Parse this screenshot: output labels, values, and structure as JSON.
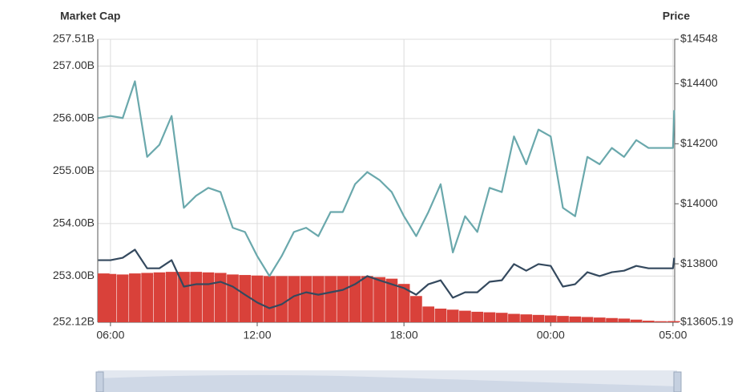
{
  "chart_data": {
    "type": "line",
    "y_label": "Market Cap",
    "y2_label": "Price",
    "x": [
      5.5,
      6,
      6.5,
      7,
      7.5,
      8,
      8.5,
      9,
      9.5,
      10,
      10.5,
      11,
      11.5,
      12,
      12.5,
      13,
      13.5,
      14,
      14.5,
      15,
      15.5,
      16,
      16.5,
      17,
      17.5,
      18,
      18.5,
      19,
      19.5,
      20,
      20.5,
      21,
      21.5,
      22,
      22.5,
      23,
      23.5,
      24,
      24.5,
      25,
      25.5,
      26,
      26.5,
      27,
      27.5,
      28,
      28.5,
      29,
      29.05
    ],
    "xlim": [
      5.48,
      29.07
    ],
    "xticks": [
      {
        "value": 6,
        "label": "06:00"
      },
      {
        "value": 12,
        "label": "12:00"
      },
      {
        "value": 18,
        "label": "18:00"
      },
      {
        "value": 24,
        "label": "00:00"
      },
      {
        "value": 29,
        "label": "05:00"
      }
    ],
    "ylim": [
      252.12,
      257.51
    ],
    "yticks": [
      {
        "value": 252.12,
        "label": "252.12B"
      },
      {
        "value": 253,
        "label": "253.00B"
      },
      {
        "value": 254,
        "label": "254.00B"
      },
      {
        "value": 255,
        "label": "255.00B"
      },
      {
        "value": 256,
        "label": "256.00B"
      },
      {
        "value": 257,
        "label": "257.00B"
      },
      {
        "value": 257.51,
        "label": "257.51B"
      }
    ],
    "y2lim": [
      13605.19,
      14548
    ],
    "y2ticks": [
      {
        "value": 13605.19,
        "label": "$13605.19"
      },
      {
        "value": 13800,
        "label": "$13800"
      },
      {
        "value": 14000,
        "label": "$14000"
      },
      {
        "value": 14200,
        "label": "$14200"
      },
      {
        "value": 14400,
        "label": "$14400"
      },
      {
        "value": 14548,
        "label": "$14548"
      }
    ],
    "grid": true,
    "series": [
      {
        "type": "bar",
        "color": "#d9413a",
        "values": [
          253.05,
          253.04,
          253.03,
          253.05,
          253.06,
          253.07,
          253.08,
          253.08,
          253.08,
          253.07,
          253.06,
          253.03,
          253.02,
          253.01,
          253.0,
          253.0,
          253.0,
          253.0,
          253.0,
          253.0,
          253.0,
          253.0,
          253.0,
          252.98,
          252.95,
          252.85,
          252.62,
          252.42,
          252.38,
          252.36,
          252.34,
          252.32,
          252.31,
          252.3,
          252.28,
          252.27,
          252.26,
          252.25,
          252.24,
          252.23,
          252.22,
          252.21,
          252.2,
          252.19,
          252.17,
          252.15,
          252.14,
          252.14,
          252.14
        ]
      },
      {
        "type": "line",
        "color": "#6aa8ac",
        "values": [
          256.01,
          256.05,
          256.01,
          256.71,
          255.27,
          255.5,
          256.05,
          254.3,
          254.53,
          254.68,
          254.6,
          253.92,
          253.84,
          253.38,
          253.0,
          253.38,
          253.84,
          253.92,
          253.76,
          254.22,
          254.22,
          254.75,
          254.98,
          254.83,
          254.6,
          254.14,
          253.76,
          254.22,
          254.75,
          253.45,
          254.14,
          253.84,
          254.68,
          254.6,
          255.66,
          255.13,
          255.79,
          255.66,
          254.3,
          254.14,
          255.27,
          255.13,
          255.44,
          255.27,
          255.59,
          255.44,
          255.44,
          255.44,
          256.16
        ]
      },
      {
        "type": "line",
        "axis": "y2",
        "color": "#34495e",
        "values": [
          13812,
          13812,
          13820,
          13847,
          13785,
          13785,
          13812,
          13724,
          13732,
          13732,
          13740,
          13724,
          13697,
          13671,
          13652,
          13665,
          13692,
          13705,
          13697,
          13705,
          13713,
          13732,
          13759,
          13745,
          13732,
          13719,
          13697,
          13732,
          13745,
          13687,
          13705,
          13705,
          13740,
          13745,
          13799,
          13777,
          13799,
          13793,
          13724,
          13732,
          13772,
          13759,
          13772,
          13777,
          13793,
          13785,
          13785,
          13785,
          13820
        ]
      }
    ]
  }
}
